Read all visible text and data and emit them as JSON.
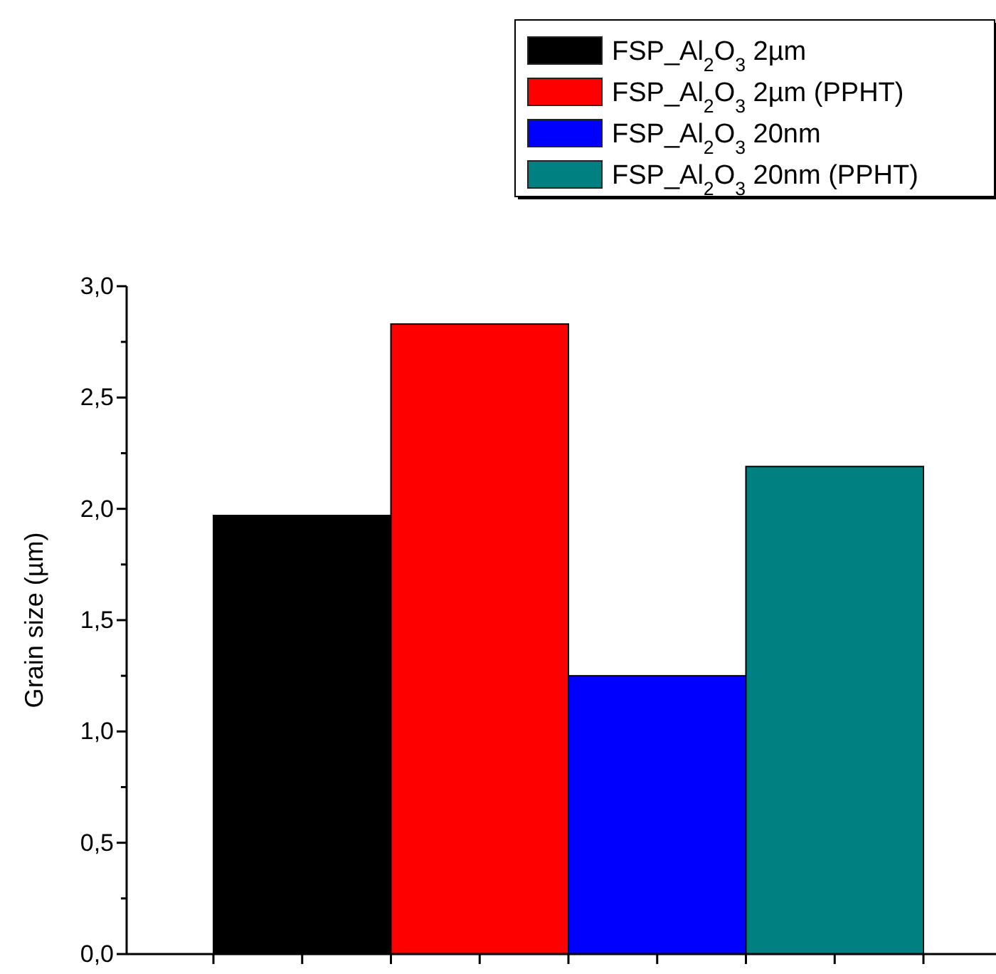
{
  "chart_data": {
    "type": "bar",
    "ylabel": "Grain size (µm)",
    "categories": [
      null,
      null,
      null,
      null
    ],
    "series": [
      {
        "name": "FSP_Al$_{2}$O$_{3}$ 2µm",
        "color": "#000000",
        "values": [
          1.97,
          null,
          null,
          null
        ]
      },
      {
        "name": "FSP_Al$_{2}$O$_{3}$ 2µm (PPHT)",
        "color": "#ff0000",
        "values": [
          null,
          2.83,
          null,
          null
        ]
      },
      {
        "name": "FSP_Al$_{2}$O$_{3}$ 20nm",
        "color": "#0000ff",
        "values": [
          null,
          null,
          1.25,
          null
        ]
      },
      {
        "name": "FSP_Al$_{2}$O$_{3}$ 20nm (PPHT)",
        "color": "#008080",
        "values": [
          null,
          null,
          null,
          2.19
        ]
      }
    ],
    "ylim": [
      0,
      3
    ],
    "yticks": [
      {
        "value": 0,
        "label": "0,0"
      },
      {
        "value": 0.25,
        "label": null
      },
      {
        "value": 0.5,
        "label": "0,5"
      },
      {
        "value": 0.75,
        "label": null
      },
      {
        "value": 1,
        "label": "1,0"
      },
      {
        "value": 1.25,
        "label": null
      },
      {
        "value": 1.5,
        "label": "1,5"
      },
      {
        "value": 1.75,
        "label": null
      },
      {
        "value": 2,
        "label": "2,0"
      },
      {
        "value": 2.25,
        "label": null
      },
      {
        "value": 2.5,
        "label": "2,5"
      },
      {
        "value": 2.75,
        "label": null
      },
      {
        "value": 3,
        "label": "3,0"
      }
    ],
    "legend": "top right"
  }
}
